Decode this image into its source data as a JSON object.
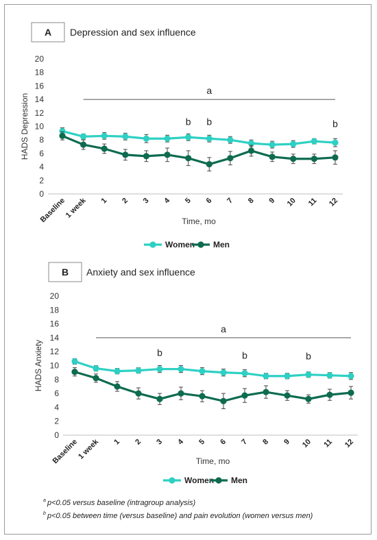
{
  "footnotes": [
    {
      "marker": "a",
      "text": "p<0.05 versus baseline (intragroup analysis)"
    },
    {
      "marker": "b",
      "text": "p<0.05 between time (versus baseline) and pain evolution (women versus men)"
    }
  ],
  "colors": {
    "women": "#2ed0c4",
    "men": "#0e6b4f"
  },
  "chart_data": [
    {
      "type": "line",
      "panel_letter": "A",
      "title": "Depression and sex influence",
      "xlabel": "Time, mo",
      "ylabel": "HADS Depression",
      "ylim": [
        0,
        20
      ],
      "yticks": [
        0,
        2,
        4,
        6,
        8,
        10,
        12,
        14,
        16,
        18,
        20
      ],
      "grid": false,
      "legend_position": "bottom-center",
      "categories": [
        "Baseline",
        "1 week",
        "1",
        "2",
        "3",
        "4",
        "5",
        "6",
        "7",
        "8",
        "9",
        "10",
        "11",
        "12"
      ],
      "series": [
        {
          "name": "Women",
          "values": [
            9.3,
            8.5,
            8.6,
            8.5,
            8.2,
            8.2,
            8.4,
            8.2,
            8.0,
            7.5,
            7.3,
            7.4,
            7.8,
            7.6
          ],
          "errors": [
            0.5,
            0.4,
            0.5,
            0.5,
            0.6,
            0.5,
            0.5,
            0.5,
            0.5,
            0.5,
            0.5,
            0.5,
            0.4,
            0.6
          ]
        },
        {
          "name": "Men",
          "values": [
            8.6,
            7.3,
            6.7,
            5.8,
            5.6,
            5.8,
            5.3,
            4.4,
            5.3,
            6.4,
            5.5,
            5.2,
            5.2,
            5.4
          ],
          "errors": [
            0.6,
            0.7,
            0.7,
            0.8,
            0.8,
            1.0,
            1.1,
            1.0,
            1.0,
            0.8,
            0.7,
            0.7,
            0.7,
            1.0
          ]
        }
      ],
      "significance_line": {
        "label": "a",
        "value": 14,
        "from": "1 week",
        "to": "12"
      },
      "annotations": [
        {
          "label": "b",
          "category": "5",
          "value": 10.2
        },
        {
          "label": "b",
          "category": "6",
          "value": 10.2
        },
        {
          "label": "b",
          "category": "12",
          "value": 9.9
        }
      ]
    },
    {
      "type": "line",
      "panel_letter": "B",
      "title": "Anxiety and sex influence",
      "xlabel": "Time, mo",
      "ylabel": "HADS Anxiety",
      "ylim": [
        0,
        20
      ],
      "yticks": [
        0,
        2,
        4,
        6,
        8,
        10,
        12,
        14,
        16,
        18,
        20
      ],
      "grid": false,
      "legend_position": "bottom-center",
      "categories": [
        "Baseline",
        "1 week",
        "1",
        "2",
        "3",
        "4",
        "5",
        "6",
        "7",
        "8",
        "9",
        "10",
        "11",
        "12"
      ],
      "series": [
        {
          "name": "Women",
          "values": [
            10.6,
            9.6,
            9.2,
            9.3,
            9.5,
            9.5,
            9.2,
            9.0,
            8.9,
            8.5,
            8.5,
            8.7,
            8.6,
            8.5
          ],
          "errors": [
            0.4,
            0.4,
            0.4,
            0.4,
            0.5,
            0.5,
            0.5,
            0.5,
            0.5,
            0.4,
            0.4,
            0.4,
            0.4,
            0.5
          ]
        },
        {
          "name": "Men",
          "values": [
            9.1,
            8.2,
            7.0,
            6.0,
            5.2,
            6.0,
            5.6,
            4.9,
            5.7,
            6.2,
            5.7,
            5.2,
            5.8,
            6.1
          ],
          "errors": [
            0.6,
            0.6,
            0.7,
            0.8,
            0.8,
            0.9,
            0.8,
            1.1,
            1.0,
            0.9,
            0.7,
            0.6,
            0.8,
            0.9
          ]
        }
      ],
      "significance_line": {
        "label": "a",
        "value": 14,
        "from": "1 week",
        "to": "12"
      },
      "annotations": [
        {
          "label": "b",
          "category": "3",
          "value": 11.4
        },
        {
          "label": "b",
          "category": "7",
          "value": 11.0
        },
        {
          "label": "b",
          "category": "10",
          "value": 10.9
        }
      ]
    }
  ]
}
